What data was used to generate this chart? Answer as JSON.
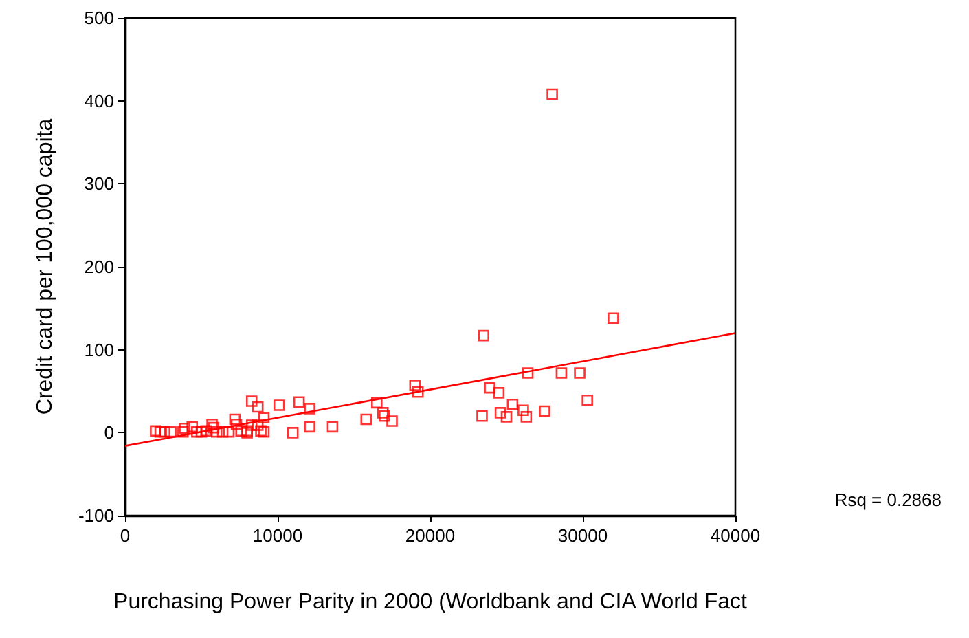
{
  "chart_data": {
    "type": "scatter",
    "xlabel": "Purchasing Power Parity in 2000 (Worldbank and CIA World Fact",
    "ylabel": "Credit card per 100,000 capita",
    "xlim": [
      0,
      40000
    ],
    "xticks": [
      0,
      10000,
      20000,
      30000,
      40000
    ],
    "ylim": [
      -100,
      500
    ],
    "yticks": [
      -100,
      0,
      100,
      200,
      300,
      400,
      500
    ],
    "grid": false,
    "annotations": [
      "Rsq = 0.2868"
    ],
    "series": [
      {
        "color": "#ff0000",
        "marker": "square",
        "x": [
          2000,
          2300,
          2600,
          3000,
          3800,
          3900,
          4400,
          4700,
          5000,
          5300,
          5700,
          5800,
          6000,
          6400,
          6800,
          7200,
          7300,
          7600,
          8000,
          8300,
          8000,
          8300,
          8700,
          8700,
          8900,
          9100,
          9100,
          10100,
          11000,
          11400,
          12100,
          12100,
          13600,
          15800,
          16500,
          16900,
          17000,
          17500,
          19000,
          19200,
          23400,
          23500,
          23900,
          24500,
          24600,
          25000,
          25400,
          26100,
          26300,
          26400,
          27500,
          28000,
          28600,
          29800,
          30300,
          32000
        ],
        "values": [
          2,
          1,
          1,
          1,
          1,
          5,
          7,
          1,
          1,
          2,
          10,
          6,
          1,
          1,
          1,
          16,
          10,
          2,
          0,
          38,
          2,
          9,
          31,
          9,
          2,
          18,
          1,
          33,
          0,
          37,
          29,
          7,
          7,
          16,
          36,
          24,
          20,
          14,
          57,
          49,
          20,
          117,
          54,
          48,
          24,
          19,
          34,
          27,
          19,
          72,
          26,
          408,
          72,
          72,
          39,
          138
        ]
      },
      {
        "type": "line",
        "color": "#ff0000",
        "marker": "none",
        "line_style": "solid",
        "x": [
          0,
          40000
        ],
        "values": [
          -16,
          120
        ]
      }
    ]
  }
}
